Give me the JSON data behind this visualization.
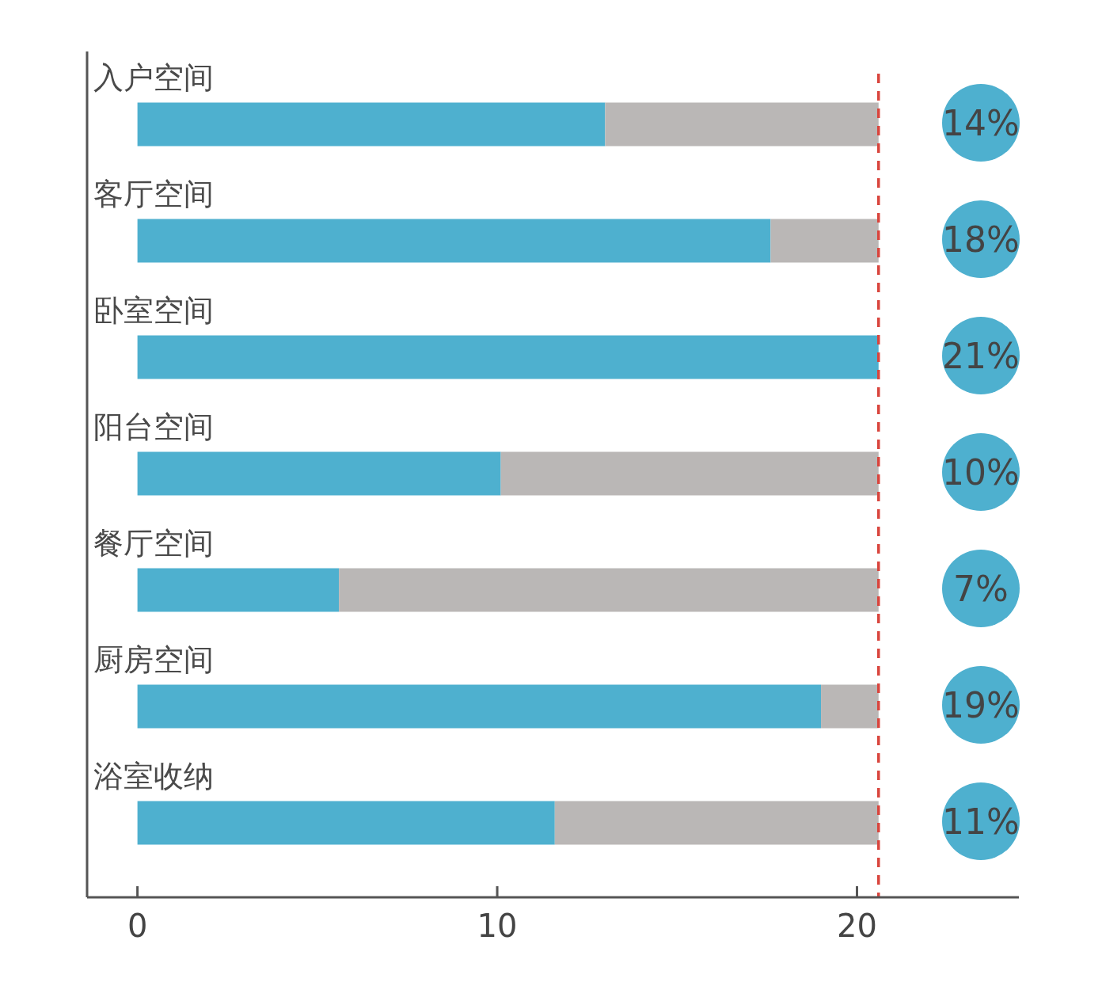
{
  "chart_data": {
    "type": "bar",
    "orientation": "horizontal",
    "stacked": true,
    "categories": [
      "入户空间",
      "客厅空间",
      "卧室空间",
      "阳台空间",
      "餐厅空间",
      "厨房空间",
      "浴室收纳"
    ],
    "series": [
      {
        "color": "#4eb0cf",
        "values": [
          13.0,
          17.6,
          20.6,
          10.1,
          5.6,
          19.0,
          11.6
        ]
      },
      {
        "color": "#bab7b6",
        "values": [
          7.6,
          3.0,
          0,
          10.5,
          15.0,
          1.6,
          9.0
        ]
      }
    ],
    "xlim": [
      -1.4,
      24.5
    ],
    "xticks": [
      0,
      10,
      20
    ],
    "ref_lines": [
      {
        "axis": "x",
        "value": 20.6,
        "color": "#d9453d",
        "line_style": "dashed"
      }
    ],
    "annotations": [
      "14%",
      "18%",
      "21%",
      "10%",
      "7%",
      "19%",
      "11%"
    ],
    "grid": false
  }
}
